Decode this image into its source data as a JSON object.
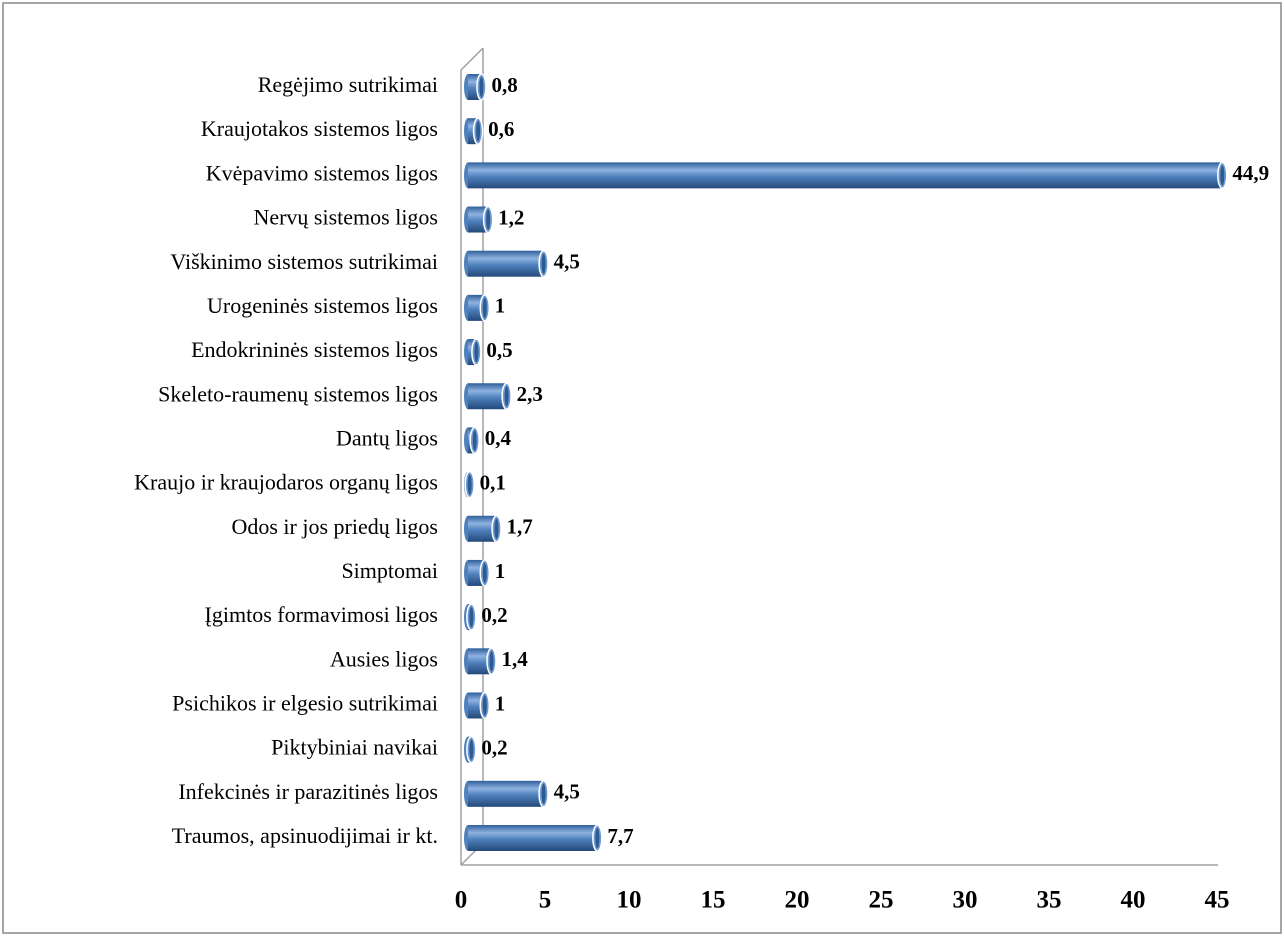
{
  "chart_data": {
    "type": "bar",
    "orientation": "horizontal",
    "categories": [
      "Regėjimo sutrikimai",
      "Kraujotakos sistemos ligos",
      "Kvėpavimo sistemos ligos",
      "Nervų sistemos ligos",
      "Viškinimo sistemos sutrikimai",
      "Urogeninės sistemos ligos",
      "Endokrininės sistemos ligos",
      "Skeleto-raumenų sistemos ligos",
      "Dantų ligos",
      "Kraujo ir kraujodaros organų ligos",
      "Odos ir jos priedų ligos",
      "Simptomai",
      "Įgimtos formavimosi ligos",
      "Ausies ligos",
      "Psichikos ir elgesio sutrikimai",
      "Piktybiniai navikai",
      "Infekcinės ir parazitinės ligos",
      "Traumos, apsinuodijimai ir kt."
    ],
    "values": [
      0.8,
      0.6,
      44.9,
      1.2,
      4.5,
      1,
      0.5,
      2.3,
      0.4,
      0.1,
      1.7,
      1,
      0.2,
      1.4,
      1,
      0.2,
      4.5,
      7.7
    ],
    "value_labels": [
      "0,8",
      "0,6",
      "44,9",
      "1,2",
      "4,5",
      "1",
      "0,5",
      "2,3",
      "0,4",
      "0,1",
      "1,7",
      "1",
      "0,2",
      "1,4",
      "1",
      "0,2",
      "4,5",
      "7,7"
    ],
    "color": "#4f81bd",
    "xlim": [
      0,
      45
    ],
    "xticks": [
      0,
      5,
      10,
      15,
      20,
      25,
      30,
      35,
      40,
      45
    ],
    "grid": false
  }
}
